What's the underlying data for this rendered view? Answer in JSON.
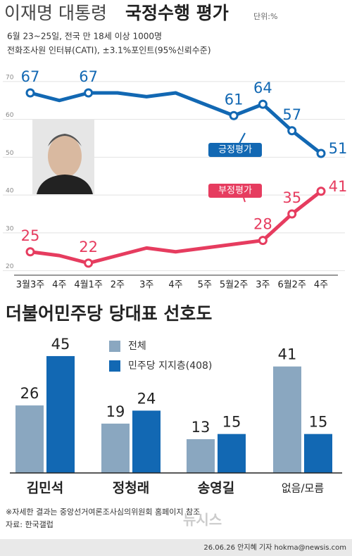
{
  "header": {
    "title_name": "이재명 대통령",
    "title_topic": "국정수행 평가",
    "unit": "단위:%",
    "subtitle_1": "6월 23~25일, 전국 만 18세 이상 1000명",
    "subtitle_2": "전화조사원 인터뷰(CATI), ±3.1%포인트(95%신뢰수준)"
  },
  "chart_data": [
    {
      "type": "line",
      "categories": [
        "3월3주",
        "4주",
        "4월1주",
        "2주",
        "3주",
        "4주",
        "5주",
        "5월2주",
        "3주",
        "6월2주",
        "4주"
      ],
      "ylim": [
        19,
        71
      ],
      "yticks": [
        20,
        30,
        40,
        50,
        60,
        70
      ],
      "grid": true,
      "series": [
        {
          "name": "긍정평가",
          "color": "#1268b3",
          "values": [
            67,
            65,
            67,
            67,
            66,
            67,
            64,
            61,
            64,
            57,
            51
          ],
          "value_labels": [
            "67",
            null,
            "67",
            null,
            null,
            null,
            null,
            "61",
            "64",
            "57",
            "51"
          ]
        },
        {
          "name": "부정평가",
          "color": "#e63c5f",
          "values": [
            25,
            24,
            22,
            24,
            26,
            25,
            26,
            27,
            28,
            35,
            41
          ],
          "value_labels": [
            "25",
            null,
            "22",
            null,
            null,
            null,
            null,
            null,
            "28",
            "35",
            "41"
          ]
        }
      ]
    },
    {
      "type": "bar",
      "title": "더불어민주당 당대표 선호도",
      "categories": [
        "김민석",
        "정청래",
        "송영길",
        "없음/모름"
      ],
      "series": [
        {
          "name": "전체",
          "color": "#8aa7c0",
          "values": [
            26,
            19,
            13,
            41
          ]
        },
        {
          "name": "민주당 지지층(408)",
          "color": "#1268b3",
          "values": [
            45,
            24,
            15,
            15
          ]
        }
      ]
    }
  ],
  "footer": {
    "note": "※자세한 결과는 중앙선거여론조사심의위원회 홈페이지 참조",
    "source": "자료: 한국갤럽",
    "credit": "26.06.26 안지혜 기자 hokma@newsis.com",
    "logo": "뉴시스"
  }
}
